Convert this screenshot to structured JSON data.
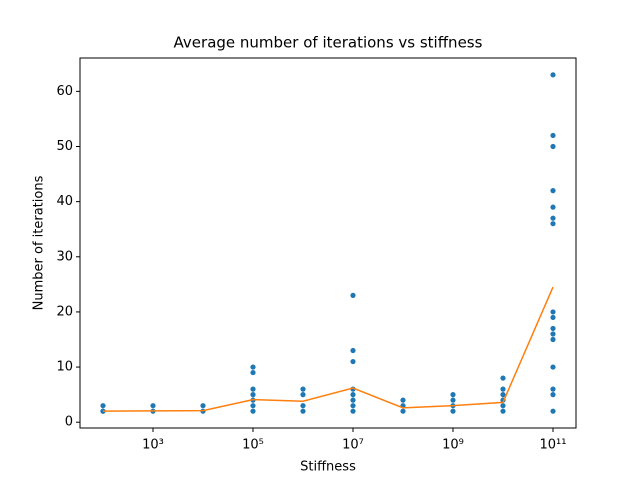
{
  "chart_data": {
    "type": "scatter",
    "title": "Average number of iterations vs stiffness",
    "xlabel": "Stiffness",
    "ylabel": "Number of iterations",
    "xscale": "log",
    "xlim": [
      34.67,
      288400000000
    ],
    "ylim": [
      -1.05,
      66.05
    ],
    "xticks": [
      {
        "value": 1000,
        "label": "10³"
      },
      {
        "value": 100000,
        "label": "10⁵"
      },
      {
        "value": 10000000,
        "label": "10⁷"
      },
      {
        "value": 1000000000,
        "label": "10⁹"
      },
      {
        "value": 100000000000,
        "label": "10¹¹"
      }
    ],
    "yticks": [
      0,
      10,
      20,
      30,
      40,
      50,
      60
    ],
    "series": [
      {
        "type": "scatter",
        "color": "#1f77b4",
        "x": [
          100,
          100,
          100,
          1000,
          1000,
          10000,
          10000,
          100000,
          100000,
          100000,
          100000,
          100000,
          100000,
          100000,
          1000000,
          1000000,
          1000000,
          1000000,
          10000000,
          10000000,
          10000000,
          10000000,
          10000000,
          10000000,
          10000000,
          10000000,
          100000000,
          100000000,
          100000000,
          1000000000,
          1000000000,
          1000000000,
          1000000000,
          10000000000,
          10000000000,
          10000000000,
          10000000000,
          10000000000,
          10000000000,
          100000000000,
          100000000000,
          100000000000,
          100000000000,
          100000000000,
          100000000000,
          100000000000,
          100000000000,
          100000000000,
          100000000000,
          100000000000,
          100000000000,
          100000000000,
          100000000000,
          100000000000,
          100000000000
        ],
        "values": [
          2,
          2,
          3,
          2,
          3,
          2,
          3,
          2,
          3,
          4,
          5,
          6,
          9,
          10,
          2,
          3,
          5,
          6,
          2,
          3,
          4,
          5,
          6,
          11,
          13,
          23,
          2,
          3,
          4,
          2,
          3,
          4,
          5,
          2,
          3,
          4,
          5,
          6,
          8,
          2,
          5,
          6,
          10,
          15,
          16,
          17,
          19,
          20,
          36,
          37,
          39,
          42,
          50,
          52,
          63
        ]
      },
      {
        "type": "line",
        "color": "#ff7f0e",
        "x": [
          100,
          1000,
          10000,
          100000,
          1000000,
          10000000,
          100000000,
          1000000000,
          10000000000,
          100000000000
        ],
        "values": [
          2.0,
          2.05,
          2.1,
          4.1,
          3.8,
          6.2,
          2.6,
          3.0,
          3.6,
          24.5
        ]
      }
    ]
  }
}
